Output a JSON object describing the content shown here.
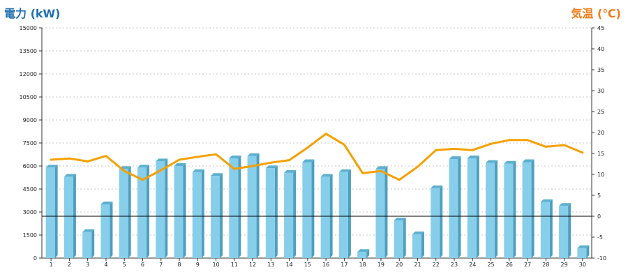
{
  "chart_data": {
    "type": "bar",
    "title": "",
    "xlabel": "",
    "categories": [
      "1",
      "2",
      "3",
      "4",
      "5",
      "6",
      "7",
      "8",
      "9",
      "10",
      "11",
      "12",
      "13",
      "14",
      "15",
      "16",
      "17",
      "18",
      "19",
      "20",
      "21",
      "22",
      "23",
      "24",
      "25",
      "26",
      "27",
      "28",
      "29",
      "30"
    ],
    "ylabel": "電力 (kW)",
    "ylim": [
      0,
      15000
    ],
    "yticks": [
      0,
      1500,
      3000,
      4500,
      6000,
      7500,
      9000,
      10500,
      12000,
      13500,
      15000
    ],
    "y2label": "気温 (℃)",
    "y2lim": [
      -10,
      45
    ],
    "y2ticks": [
      -10,
      -5,
      0,
      5,
      10,
      15,
      20,
      25,
      30,
      35,
      40,
      45
    ],
    "grid": true,
    "series": [
      {
        "type": "bar",
        "axis": "left",
        "color": "#87ceeb",
        "values": [
          5900,
          5300,
          1700,
          3500,
          5800,
          5900,
          6300,
          6000,
          5600,
          5350,
          6500,
          6650,
          5850,
          5550,
          6250,
          5300,
          5600,
          400,
          5800,
          2450,
          1550,
          4550,
          6450,
          6500,
          6200,
          6150,
          6250,
          3650,
          3400,
          650
        ]
      },
      {
        "type": "line",
        "axis": "right",
        "color": "#f5a000",
        "values": [
          13.5,
          13.8,
          13.1,
          14.4,
          10.8,
          8.7,
          11.0,
          13.5,
          14.2,
          14.8,
          11.3,
          12.0,
          12.8,
          13.4,
          16.4,
          19.7,
          17.1,
          10.3,
          10.8,
          8.7,
          11.8,
          15.8,
          16.1,
          15.8,
          17.3,
          18.2,
          18.2,
          16.6,
          17.0,
          15.2
        ]
      }
    ],
    "reference_line": {
      "axis": "right",
      "value": 0,
      "color": "#000000"
    }
  }
}
